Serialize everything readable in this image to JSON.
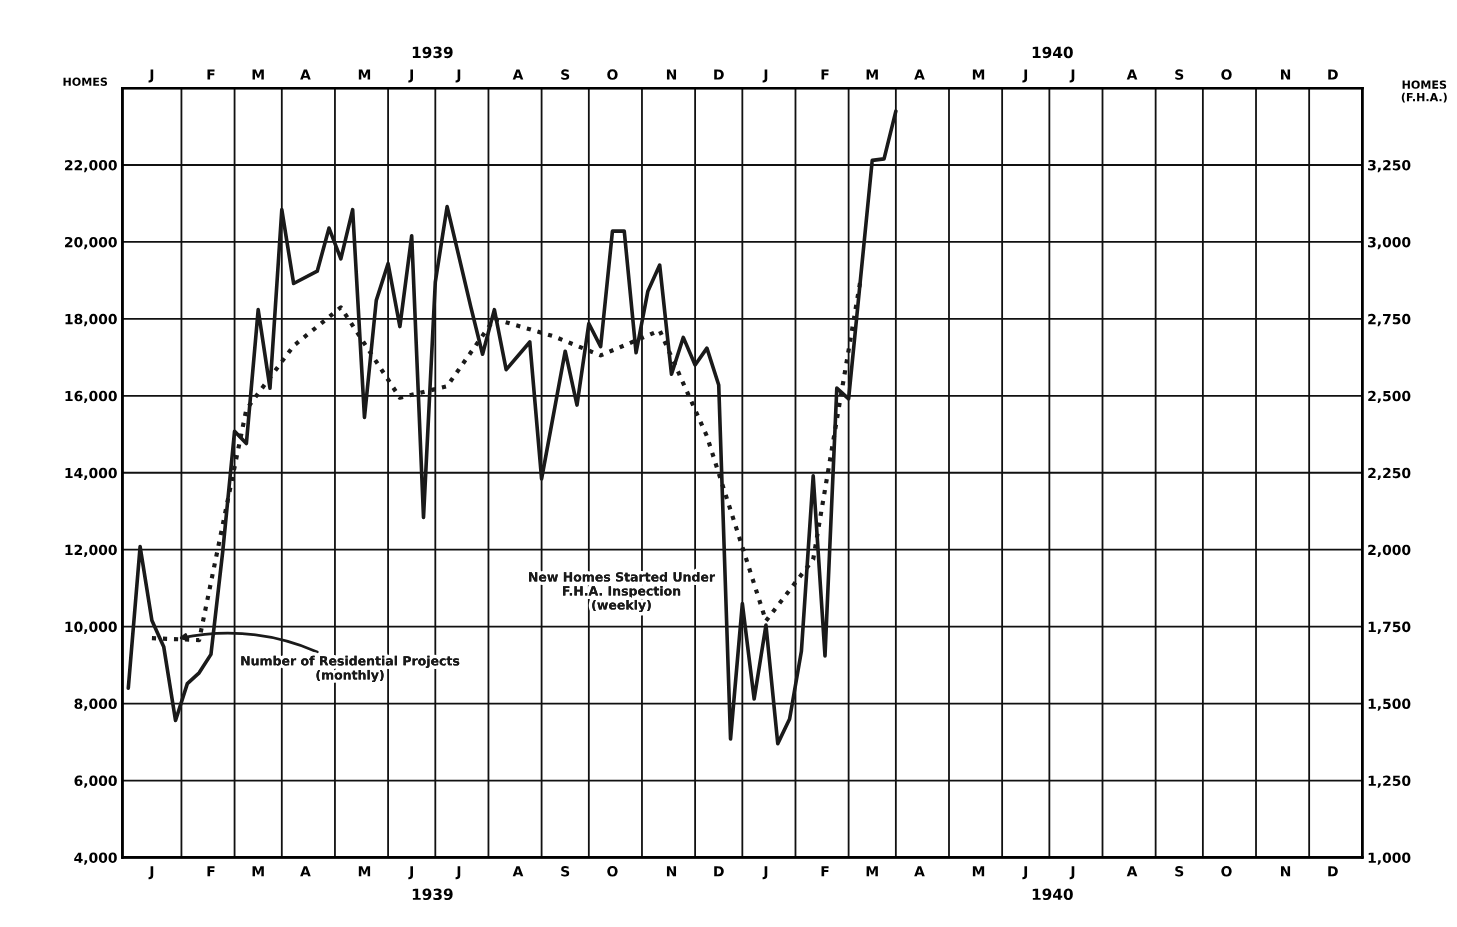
{
  "chart_data": {
    "type": "line",
    "ylabel": "HOMES",
    "y2label": "HOMES\n(F.H.A.)",
    "annotations": [
      "1939",
      "1940"
    ],
    "categories": [
      null,
      null,
      "J",
      null,
      null,
      null,
      null,
      "F",
      null,
      null,
      null,
      "M",
      null,
      null,
      null,
      "A",
      null,
      null,
      null,
      null,
      "M",
      null,
      null,
      null,
      "J",
      null,
      null,
      null,
      "J",
      null,
      null,
      null,
      null,
      "A",
      null,
      null,
      null,
      "S",
      null,
      null,
      null,
      "O",
      null,
      null,
      null,
      null,
      "N",
      null,
      null,
      null,
      "D",
      null,
      null,
      null,
      "J",
      null,
      null,
      null,
      null,
      "F",
      null,
      null,
      null,
      "M",
      null,
      null,
      null,
      "A",
      null,
      null,
      null,
      null,
      "M",
      null,
      null,
      null,
      "J",
      null,
      null,
      null,
      "J",
      null,
      null,
      null,
      null,
      "A",
      null,
      null,
      null,
      "S",
      null,
      null,
      null,
      "O",
      null,
      null,
      null,
      null,
      "N",
      null,
      null,
      null,
      "D",
      null,
      null
    ],
    "ylim": [
      4000,
      24000
    ],
    "yticks": [
      {
        "value": 4000,
        "label": "4,000"
      },
      {
        "value": 6000,
        "label": "6,000"
      },
      {
        "value": 8000,
        "label": "8,000"
      },
      {
        "value": 10000,
        "label": "10,000"
      },
      {
        "value": 12000,
        "label": "12,000"
      },
      {
        "value": 14000,
        "label": "14,000"
      },
      {
        "value": 16000,
        "label": "16,000"
      },
      {
        "value": 18000,
        "label": "18,000"
      },
      {
        "value": 20000,
        "label": "20,000"
      },
      {
        "value": 22000,
        "label": "22,000"
      }
    ],
    "y2lim": [
      1000,
      3500
    ],
    "y2ticks": [
      {
        "value": 1000,
        "label": "1,000"
      },
      {
        "value": 1250,
        "label": "1,250"
      },
      {
        "value": 1500,
        "label": "1,500"
      },
      {
        "value": 1750,
        "label": "1,750"
      },
      {
        "value": 2000,
        "label": "2,000"
      },
      {
        "value": 2250,
        "label": "2,250"
      },
      {
        "value": 2500,
        "label": "2,500"
      },
      {
        "value": 2750,
        "label": "2,750"
      },
      {
        "value": 3000,
        "label": "3,000"
      },
      {
        "value": 3250,
        "label": "3,250"
      }
    ],
    "grid": true,
    "legend": false,
    "marker": "none",
    "series": [
      {
        "name": "Number of Residential Projects\n(monthly)",
        "color": "#1a1a1a",
        "line_style": "dotted",
        "values": [
          null,
          null,
          9700,
          null,
          null,
          null,
          9650,
          null,
          null,
          null,
          15650,
          null,
          null,
          null,
          17300,
          null,
          null,
          null,
          18300,
          null,
          null,
          null,
          null,
          15950,
          null,
          null,
          null,
          16250,
          null,
          null,
          null,
          18000,
          null,
          null,
          null,
          null,
          17550,
          null,
          null,
          null,
          17050,
          null,
          null,
          null,
          null,
          17700,
          null,
          null,
          null,
          14950,
          null,
          null,
          null,
          null,
          10150,
          null,
          null,
          null,
          11750,
          null,
          null,
          null,
          19000,
          null,
          null,
          null,
          null,
          null,
          null,
          null,
          null,
          null,
          null,
          null,
          null,
          null,
          null,
          null,
          null,
          null,
          null,
          null,
          null,
          null,
          null,
          null,
          null,
          null,
          null,
          null,
          null,
          null,
          null,
          null,
          null,
          null,
          null,
          null,
          null,
          null,
          null,
          null,
          null,
          null,
          null
        ]
      },
      {
        "name": "New Homes Started Under\nF.H.A. Inspection\n(weekly)",
        "color": "#1a1a1a",
        "line_style": "solid",
        "axis": "y2",
        "values": [
          1550,
          2010,
          1770,
          1685,
          1445,
          1565,
          1600,
          1660,
          1995,
          2385,
          2345,
          2780,
          2525,
          3105,
          2865,
          null,
          2905,
          3045,
          2945,
          3105,
          2430,
          2810,
          2930,
          2725,
          3020,
          2105,
          2870,
          3115,
          null,
          2790,
          2635,
          2780,
          2585,
          null,
          2675,
          2230,
          null,
          2645,
          2470,
          2735,
          2660,
          3035,
          3035,
          2640,
          2840,
          2925,
          2570,
          2690,
          2600,
          2655,
          2535,
          1385,
          1825,
          1515,
          1755,
          1370,
          1450,
          1670,
          2240,
          1655,
          2525,
          2490,
          null,
          3265,
          3270,
          3425,
          null,
          null,
          null,
          null,
          null,
          null,
          null,
          null,
          null,
          null,
          null,
          null,
          null,
          null,
          null,
          null,
          null,
          null,
          null,
          null,
          null,
          null,
          null,
          null,
          null,
          null,
          null,
          null,
          null,
          null,
          null,
          null,
          null,
          null,
          null,
          null,
          null,
          null,
          null
        ]
      }
    ]
  }
}
